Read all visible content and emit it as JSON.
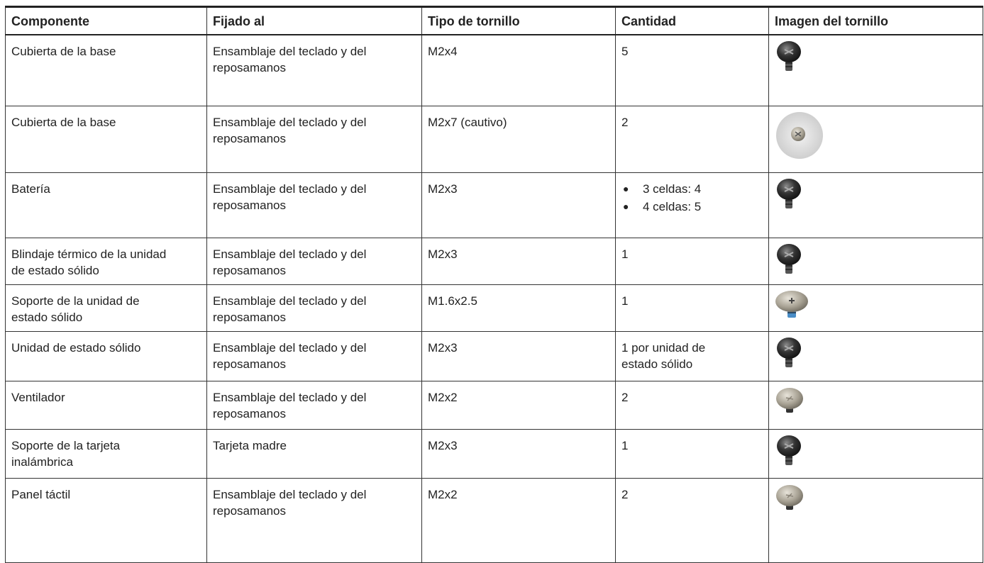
{
  "table": {
    "columns": [
      "Componente",
      "Fijado al",
      "Tipo de tornillo",
      "Cantidad",
      "Imagen del tornillo"
    ],
    "rows": [
      [
        "Cubierta de la base",
        "Ensamblaje del teclado y del reposamanos",
        "M2x4",
        "5"
      ],
      [
        "Cubierta de la base",
        "Ensamblaje del teclado y del reposamanos",
        "M2x7 (cautivo)",
        "2"
      ],
      [
        "Batería",
        "Ensamblaje del teclado y del reposamanos",
        "M2x3",
        [
          "3 celdas: 4",
          "4 celdas: 5"
        ]
      ],
      [
        "Blindaje térmico de la unidad de estado sólido",
        "Ensamblaje del teclado y del reposamanos",
        "M2x3",
        "1"
      ],
      [
        "Soporte de la unidad de estado sólido",
        "Ensamblaje del teclado y del reposamanos",
        "M1.6x2.5",
        "1"
      ],
      [
        "Unidad de estado sólido",
        "Ensamblaje del teclado y del reposamanos",
        "M2x3",
        "1 por unidad de estado sólido"
      ],
      [
        "Ventilador",
        "Ensamblaje del teclado y del reposamanos",
        "M2x2",
        "2"
      ],
      [
        "Soporte de la tarjeta inalámbrica",
        "Tarjeta madre",
        "M2x3",
        "1"
      ],
      [
        "Panel táctil",
        "Ensamblaje del teclado y del reposamanos",
        "M2x2",
        "2"
      ]
    ]
  }
}
